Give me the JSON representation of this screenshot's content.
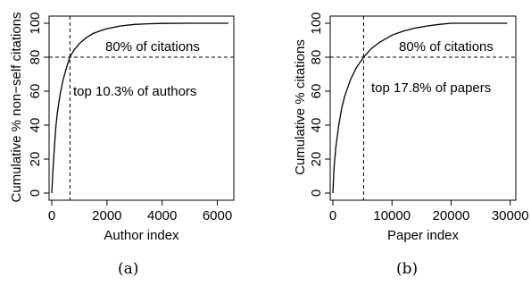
{
  "chart_data": [
    {
      "type": "line",
      "panel_label": "(a)",
      "xlabel": "Author index",
      "ylabel": "Cumulative % non−self citations",
      "xlim": [
        0,
        6500
      ],
      "ylim": [
        0,
        100
      ],
      "x_ticks": [
        0,
        2000,
        4000,
        6000
      ],
      "x_tick_labels": [
        "0",
        "2000",
        "4000",
        "6000"
      ],
      "y_ticks": [
        0,
        20,
        40,
        60,
        80,
        100
      ],
      "y_tick_labels": [
        "0",
        "20",
        "40",
        "60",
        "80",
        "100"
      ],
      "x_max": 6400,
      "curve": {
        "x": [
          0,
          50,
          100,
          150,
          200,
          300,
          400,
          500,
          650,
          800,
          1000,
          1250,
          1500,
          1750,
          2000,
          2500,
          3000,
          3500,
          4000,
          5000,
          6400
        ],
        "y": [
          0,
          15,
          28,
          39,
          47,
          58,
          66,
          72,
          80,
          84,
          88,
          91.5,
          94,
          95.5,
          96.8,
          98.4,
          99.3,
          99.7,
          99.9,
          100,
          100
        ]
      },
      "hline_y": 80,
      "vline_x": 660,
      "annotation_top": "80% of citations",
      "annotation_side": "top 10.3% of authors",
      "grid": false
    },
    {
      "type": "line",
      "panel_label": "(b)",
      "xlabel": "Paper index",
      "ylabel": "Cumulative % citations",
      "xlim": [
        0,
        30500
      ],
      "ylim": [
        0,
        100
      ],
      "x_ticks": [
        0,
        10000,
        20000,
        30000
      ],
      "x_tick_labels": [
        "0",
        "10000",
        "20000",
        "30000"
      ],
      "y_ticks": [
        0,
        20,
        40,
        60,
        80,
        100
      ],
      "y_tick_labels": [
        "0",
        "20",
        "40",
        "60",
        "80",
        "100"
      ],
      "x_max": 29500,
      "curve": {
        "x": [
          0,
          200,
          500,
          1000,
          1500,
          2000,
          3000,
          4000,
          5200,
          6500,
          8000,
          10000,
          12000,
          14000,
          16000,
          18000,
          20000,
          24000,
          29500
        ],
        "y": [
          0,
          15,
          27,
          40,
          50,
          57,
          67,
          74,
          80,
          85,
          89,
          93,
          95.5,
          97.2,
          98.4,
          99.3,
          100,
          100,
          100
        ]
      },
      "hline_y": 80,
      "vline_x": 5200,
      "annotation_top": "80% of citations",
      "annotation_side": "top 17.8% of papers",
      "grid": false
    }
  ]
}
